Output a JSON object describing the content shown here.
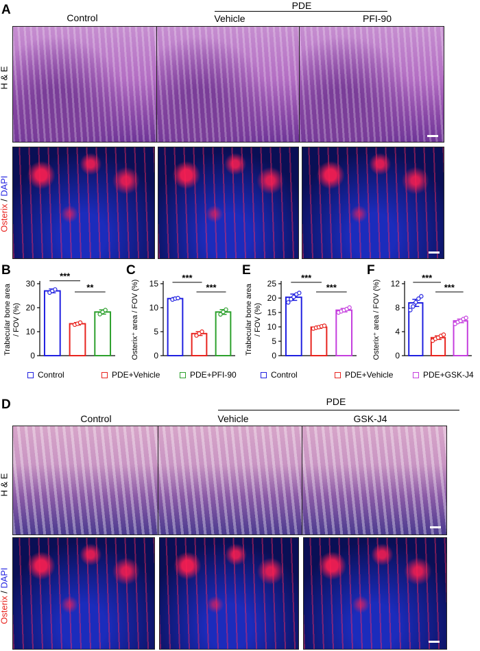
{
  "panel_a": {
    "letter": "A",
    "group_label": "PDE",
    "columns": [
      "Control",
      "Vehicle",
      "PFI-90"
    ],
    "row_he": "H & E",
    "row_if_red": "Osterix",
    "row_if_sep": " / ",
    "row_if_blue": "DAPI"
  },
  "panel_d": {
    "letter": "D",
    "group_label": "PDE",
    "columns": [
      "Control",
      "Vehicle",
      "GSK-J4"
    ],
    "row_he": "H & E",
    "row_if_red": "Osterix",
    "row_if_sep": " / ",
    "row_if_blue": "DAPI"
  },
  "legend_left": {
    "items": [
      "Control",
      "PDE+Vehicle",
      "PDE+PFI-90"
    ],
    "colors": [
      "#1f1fe0",
      "#e8231e",
      "#2ca02c"
    ]
  },
  "legend_right": {
    "items": [
      "Control",
      "PDE+Vehicle",
      "PDE+GSK-J4"
    ],
    "colors": [
      "#1f1fe0",
      "#e8231e",
      "#c43dde"
    ]
  },
  "chart_data": [
    {
      "letter": "B",
      "type": "bar",
      "categories": [
        "Control",
        "PDE+Vehicle",
        "PDE+PFI-90"
      ],
      "values": [
        27,
        13.3,
        18.2
      ],
      "errors": [
        0.8,
        0.5,
        0.9
      ],
      "points": [
        [
          26.3,
          27.0,
          27.6
        ],
        [
          12.9,
          13.3,
          13.8
        ],
        [
          17.3,
          18.2,
          19.0
        ]
      ],
      "colors": [
        "#1f1fe0",
        "#e8231e",
        "#2ca02c"
      ],
      "ylabel_lines": [
        "Trabecular bone area",
        "/ FOV (%)"
      ],
      "ylim": [
        0,
        30
      ],
      "yticks": [
        0,
        10,
        20,
        30
      ],
      "sig": [
        {
          "label": "***",
          "from": 0,
          "to": 1
        },
        {
          "label": "**",
          "from": 1,
          "to": 2
        }
      ]
    },
    {
      "letter": "C",
      "type": "bar",
      "categories": [
        "Control",
        "PDE+Vehicle",
        "PDE+PFI-90"
      ],
      "values": [
        11.9,
        4.6,
        9.1
      ],
      "errors": [
        0.2,
        0.4,
        0.5
      ],
      "points": [
        [
          11.7,
          11.9,
          12.0
        ],
        [
          4.2,
          4.6,
          5.0
        ],
        [
          8.6,
          9.1,
          9.6
        ]
      ],
      "colors": [
        "#1f1fe0",
        "#e8231e",
        "#2ca02c"
      ],
      "ylabel_lines": [
        "Osterix⁺ area / FOV (%)"
      ],
      "ylim": [
        0,
        15
      ],
      "yticks": [
        0,
        5,
        10,
        15
      ],
      "sig": [
        {
          "label": "***",
          "from": 0,
          "to": 1
        },
        {
          "label": "***",
          "from": 1,
          "to": 2
        }
      ]
    },
    {
      "letter": "E",
      "type": "bar",
      "categories": [
        "Control",
        "PDE+Vehicle",
        "PDE+GSK-J4"
      ],
      "values": [
        20.3,
        9.9,
        15.8
      ],
      "errors": [
        1.1,
        0.4,
        0.6
      ],
      "points": [
        [
          18.5,
          19.6,
          20.4,
          21.3,
          21.8
        ],
        [
          9.4,
          9.7,
          9.9,
          10.2,
          10.4
        ],
        [
          15.0,
          15.4,
          15.8,
          16.2,
          16.7
        ]
      ],
      "colors": [
        "#1f1fe0",
        "#e8231e",
        "#c43dde"
      ],
      "ylabel_lines": [
        "Trabecular bone area",
        "/ FOV (%)"
      ],
      "ylim": [
        0,
        25
      ],
      "yticks": [
        0,
        5,
        10,
        15,
        20,
        25
      ],
      "sig": [
        {
          "label": "***",
          "from": 0,
          "to": 1
        },
        {
          "label": "***",
          "from": 1,
          "to": 2
        }
      ]
    },
    {
      "letter": "F",
      "type": "bar",
      "categories": [
        "Control",
        "PDE+Vehicle",
        "PDE+GSK-J4"
      ],
      "values": [
        8.8,
        3.0,
        5.8
      ],
      "errors": [
        0.6,
        0.3,
        0.3
      ],
      "points": [
        [
          7.6,
          8.2,
          8.9,
          9.5,
          9.9
        ],
        [
          2.5,
          2.8,
          3.0,
          3.3,
          3.5
        ],
        [
          5.3,
          5.6,
          5.8,
          6.1,
          6.3
        ]
      ],
      "colors": [
        "#1f1fe0",
        "#e8231e",
        "#c43dde"
      ],
      "ylabel_lines": [
        "Osterix⁺ area / FOV (%)"
      ],
      "ylim": [
        0,
        12
      ],
      "yticks": [
        0,
        4,
        8,
        12
      ],
      "sig": [
        {
          "label": "***",
          "from": 0,
          "to": 1
        },
        {
          "label": "***",
          "from": 1,
          "to": 2
        }
      ]
    }
  ]
}
